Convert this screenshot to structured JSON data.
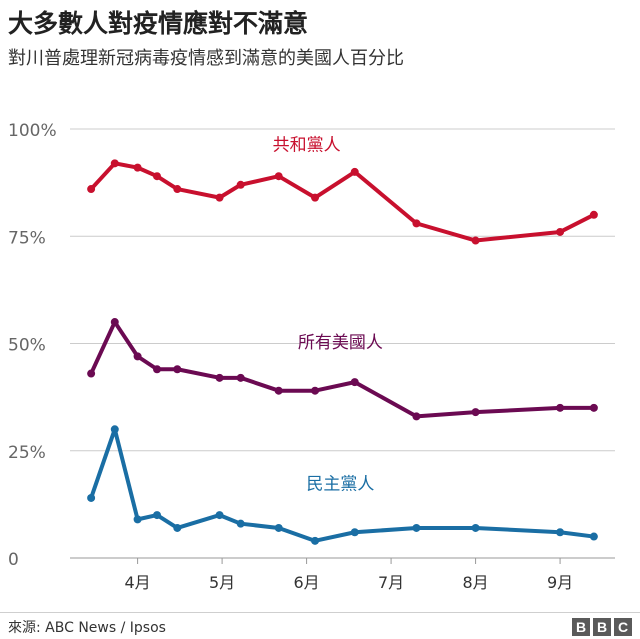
{
  "header": {
    "title": "大多數人對疫情應對不滿意",
    "subtitle": "對川普處理新冠病毒疫情感到滿意的美國人百分比"
  },
  "footer": {
    "source": "來源: ABC News / Ipsos",
    "logo_letters": [
      "B",
      "B",
      "C"
    ]
  },
  "colors": {
    "republican": "#c8102e",
    "all": "#6b0a52",
    "democrat": "#1a6ea4",
    "grid": "#cccccc",
    "axis_text": "#666666"
  },
  "chart_data": {
    "type": "line",
    "title": "大多數人對疫情應對不滿意",
    "subtitle": "對川普處理新冠病毒疫情感到滿意的美國人百分比",
    "x_unit": "2020 month (fractional, 4 = 1 April)",
    "x_ticks": [
      {
        "x": 4,
        "label": "4月"
      },
      {
        "x": 5,
        "label": "5月"
      },
      {
        "x": 6,
        "label": "6月"
      },
      {
        "x": 7,
        "label": "7月"
      },
      {
        "x": 8,
        "label": "8月"
      },
      {
        "x": 9,
        "label": "9月"
      }
    ],
    "xlim": [
      3.2,
      9.65
    ],
    "y_ticks": [
      {
        "y": 0,
        "label": "0"
      },
      {
        "y": 25,
        "label": "25%"
      },
      {
        "y": 50,
        "label": "50%"
      },
      {
        "y": 75,
        "label": "75%"
      },
      {
        "y": 100,
        "label": "100%"
      }
    ],
    "ylim": [
      0,
      100
    ],
    "grid": true,
    "legend": "inline labels",
    "x": [
      3.45,
      3.73,
      4.0,
      4.23,
      4.47,
      4.97,
      5.22,
      5.67,
      6.1,
      6.57,
      7.3,
      8.0,
      9.0,
      9.4
    ],
    "series": [
      {
        "name": "共和黨人",
        "color_key": "republican",
        "values": [
          86,
          92,
          91,
          89,
          86,
          84,
          87,
          89,
          84,
          90,
          78,
          74,
          76,
          80
        ],
        "label_x": 6.0,
        "label_y": 95
      },
      {
        "name": "所有美國人",
        "color_key": "all",
        "values": [
          43,
          55,
          47,
          44,
          44,
          42,
          42,
          39,
          39,
          41,
          33,
          34,
          35,
          35
        ],
        "label_x": 6.4,
        "label_y": 49
      },
      {
        "name": "民主黨人",
        "color_key": "democrat",
        "values": [
          14,
          30,
          9,
          10,
          7,
          10,
          8,
          7,
          4,
          6,
          7,
          7,
          6,
          5
        ],
        "label_x": 6.4,
        "label_y": 16
      }
    ]
  }
}
